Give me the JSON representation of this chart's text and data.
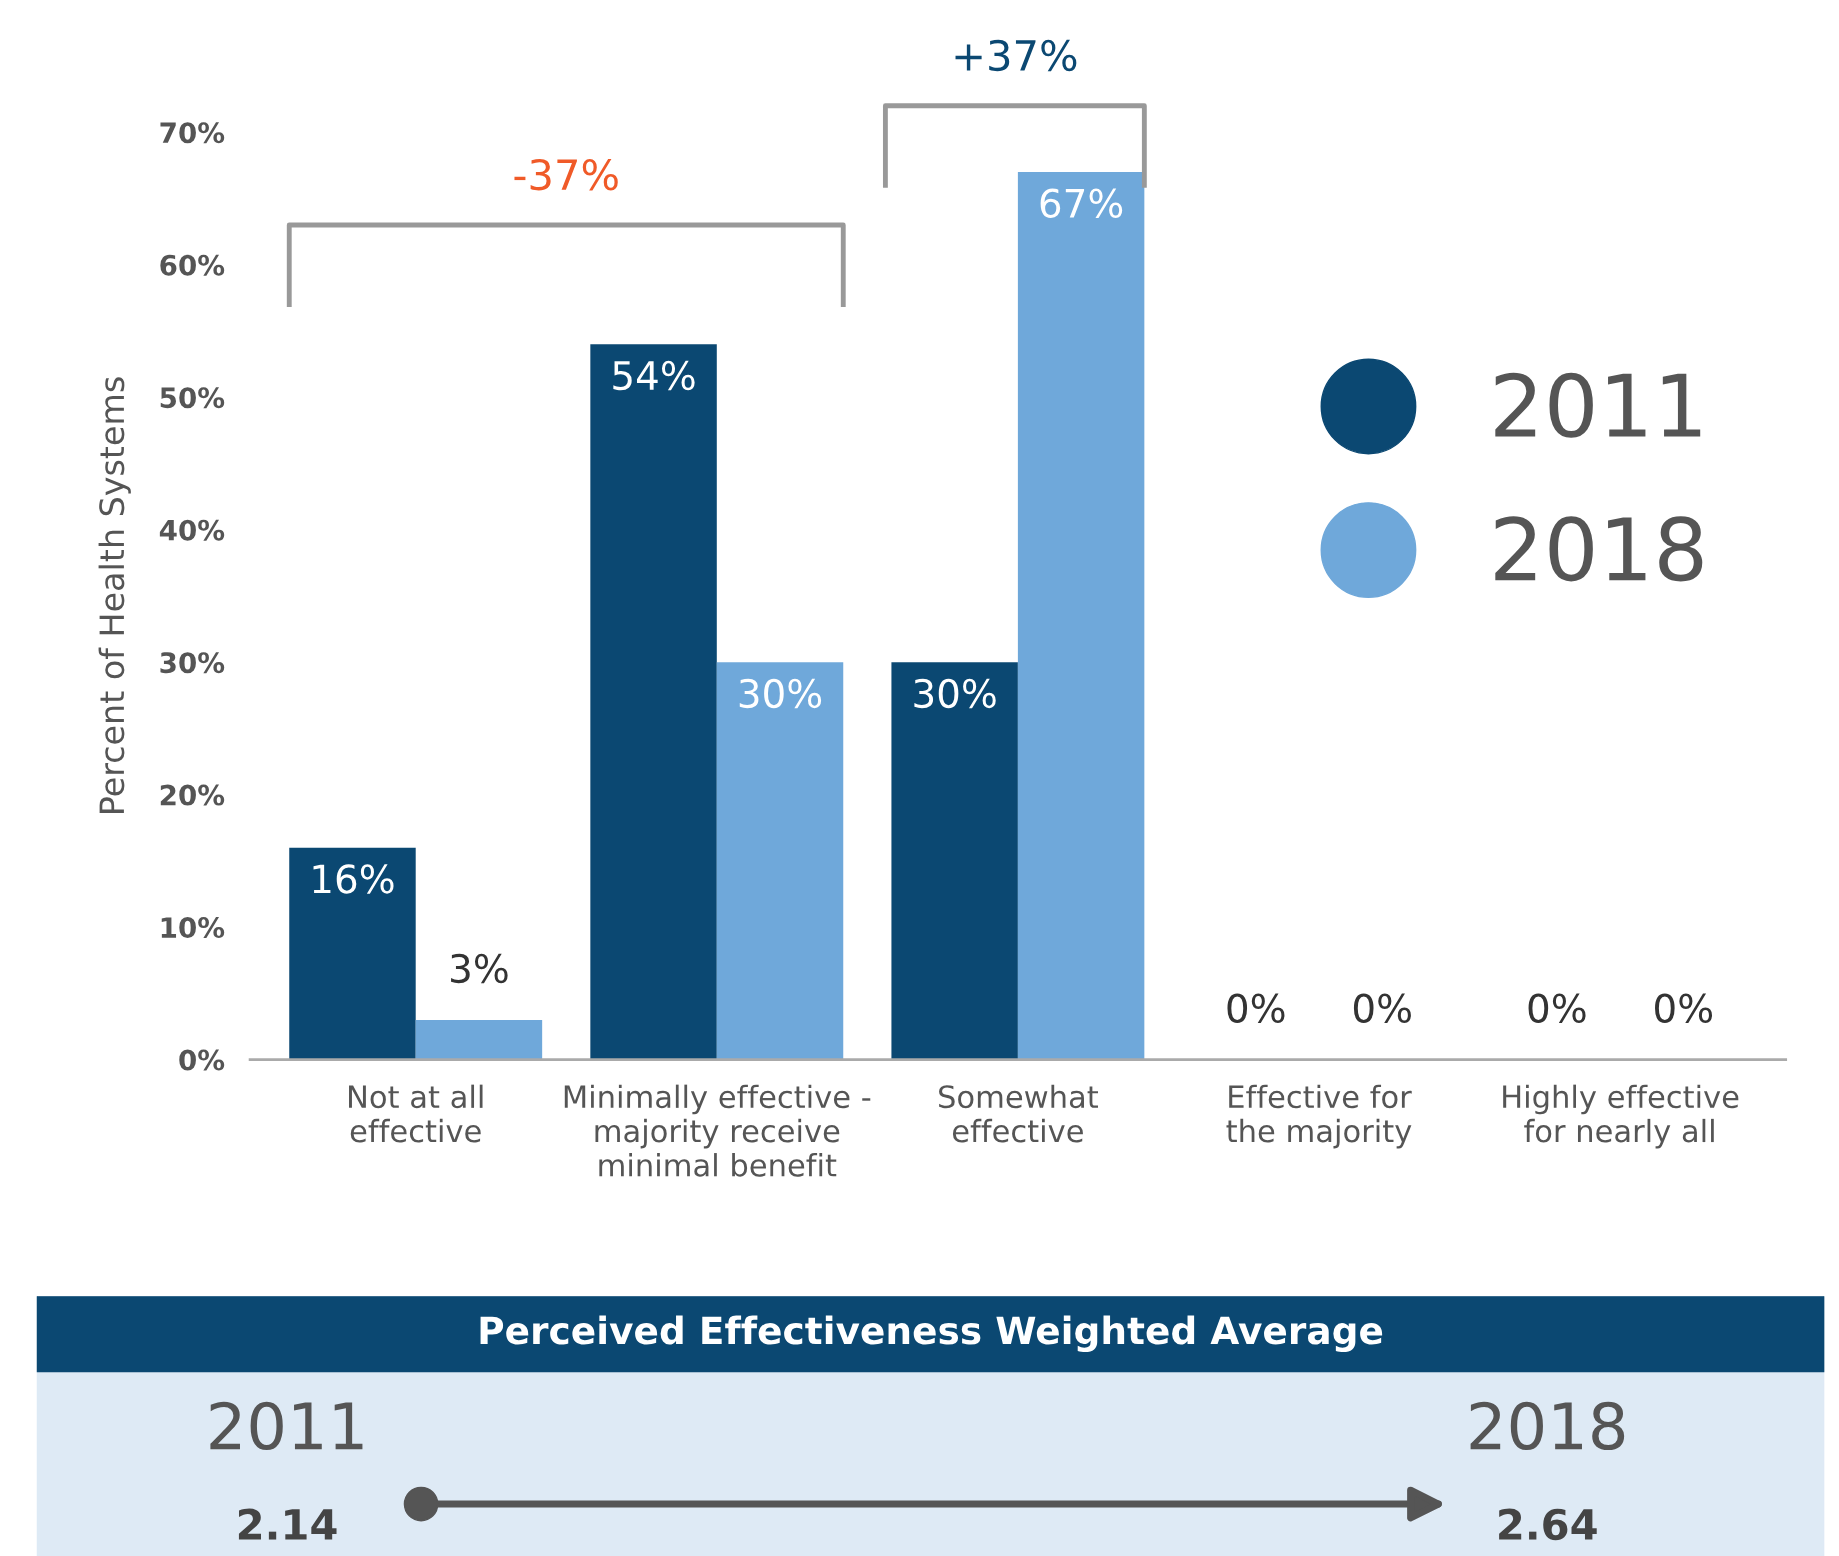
{
  "chart_data": [
    {
      "type": "bar",
      "ylabel": "Percent of Health Systems",
      "categories": [
        "Not at all\neffective",
        "Minimally effective -\nmajority receive\nminimal benefit",
        "Somewhat\neffective",
        "Effective for\nthe majority",
        "Highly effective\nfor nearly all"
      ],
      "series": [
        {
          "name": "2011",
          "color": "#0b4872",
          "values": [
            16,
            54,
            30,
            0,
            0
          ]
        },
        {
          "name": "2018",
          "color": "#6fa8da",
          "values": [
            3,
            30,
            67,
            0,
            0
          ]
        }
      ],
      "ylim": [
        0,
        70
      ],
      "yticks": [
        {
          "value": 0,
          "label": "0%"
        },
        {
          "value": 10,
          "label": "10%"
        },
        {
          "value": 20,
          "label": "20%"
        },
        {
          "value": 30,
          "label": "30%"
        },
        {
          "value": 40,
          "label": "40%"
        },
        {
          "value": 50,
          "label": "50%"
        },
        {
          "value": 60,
          "label": "60%"
        },
        {
          "value": 70,
          "label": "70%"
        }
      ],
      "value_labels": [
        [
          "16%",
          "54%",
          "30%",
          "0%",
          "0%"
        ],
        [
          "3%",
          "30%",
          "67%",
          "0%",
          "0%"
        ]
      ],
      "annotations": [
        "-37%",
        "+37%"
      ],
      "grid": false,
      "legend": "right"
    },
    {
      "type": "other",
      "title": "Perceived Effectiveness Weighted Average",
      "categories": [
        "2011",
        "2018"
      ],
      "values": [
        2.14,
        2.64
      ],
      "data_labels": true
    }
  ]
}
